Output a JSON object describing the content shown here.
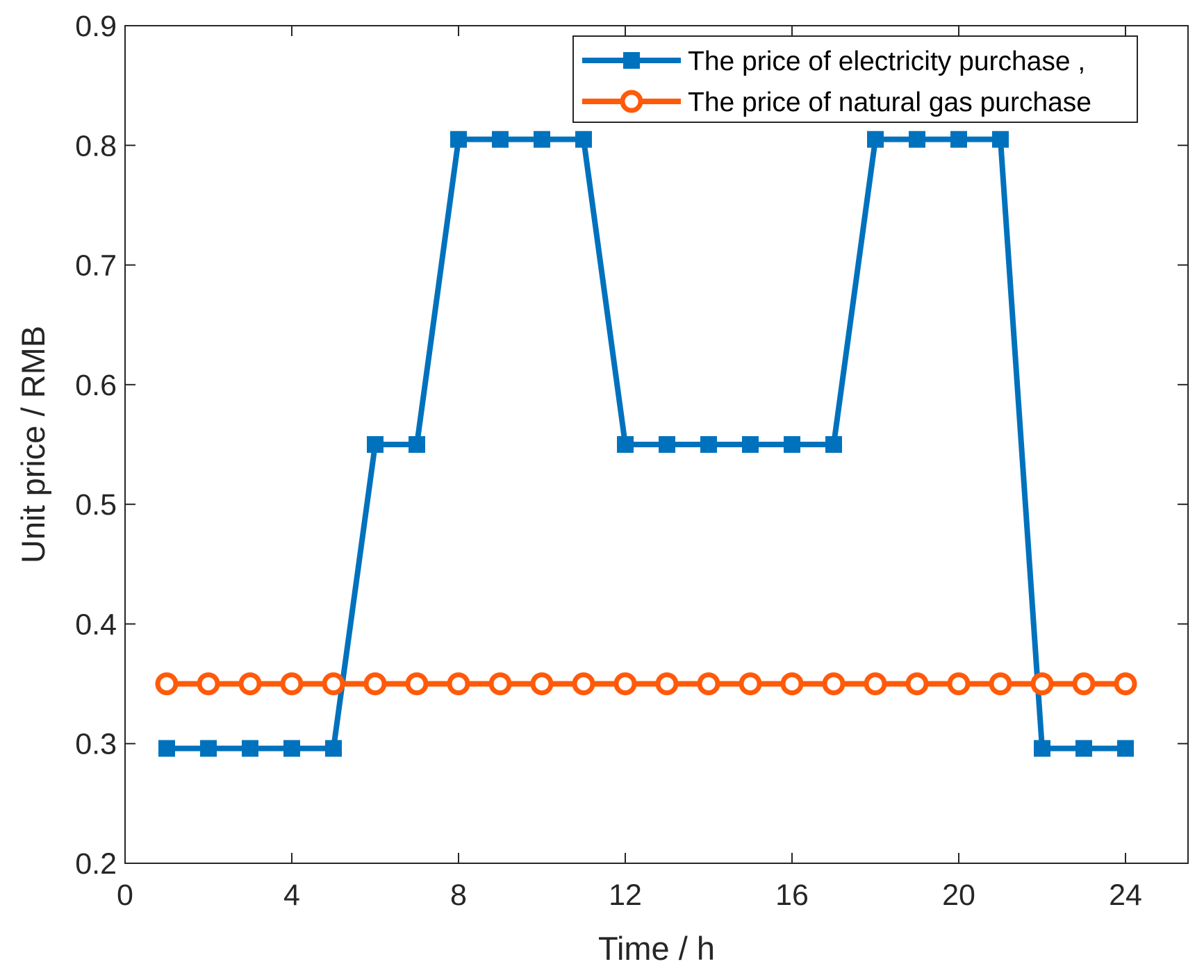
{
  "chart_data": {
    "type": "line",
    "title": "",
    "xlabel": "Time / h",
    "ylabel": "Unit price / RMB",
    "xlim": [
      0,
      25.5
    ],
    "ylim": [
      0.2,
      0.9
    ],
    "xticks": [
      0,
      4,
      8,
      12,
      16,
      20,
      24
    ],
    "yticks": [
      0.2,
      0.3,
      0.4,
      0.5,
      0.6,
      0.7,
      0.8,
      0.9
    ],
    "xtick_labels": [
      "0",
      "4",
      "8",
      "12",
      "16",
      "20",
      "24"
    ],
    "ytick_labels": [
      "0.2",
      "0.3",
      "0.4",
      "0.5",
      "0.6",
      "0.7",
      "0.8",
      "0.9"
    ],
    "grid": false,
    "legend_position": "top-right",
    "x": [
      1,
      2,
      3,
      4,
      5,
      6,
      7,
      8,
      9,
      10,
      11,
      12,
      13,
      14,
      15,
      16,
      17,
      18,
      19,
      20,
      21,
      22,
      23,
      24
    ],
    "series": [
      {
        "name": "The price of electricity purchase ,",
        "color": "#0072BD",
        "marker": "square",
        "values": [
          0.296,
          0.296,
          0.296,
          0.296,
          0.296,
          0.55,
          0.55,
          0.805,
          0.805,
          0.805,
          0.805,
          0.55,
          0.55,
          0.55,
          0.55,
          0.55,
          0.55,
          0.805,
          0.805,
          0.805,
          0.805,
          0.296,
          0.296,
          0.296
        ]
      },
      {
        "name": "The price of natural gas purchase",
        "color": "#FF5A0A",
        "marker": "circle",
        "values": [
          0.35,
          0.35,
          0.35,
          0.35,
          0.35,
          0.35,
          0.35,
          0.35,
          0.35,
          0.35,
          0.35,
          0.35,
          0.35,
          0.35,
          0.35,
          0.35,
          0.35,
          0.35,
          0.35,
          0.35,
          0.35,
          0.35,
          0.35,
          0.35
        ]
      }
    ]
  }
}
